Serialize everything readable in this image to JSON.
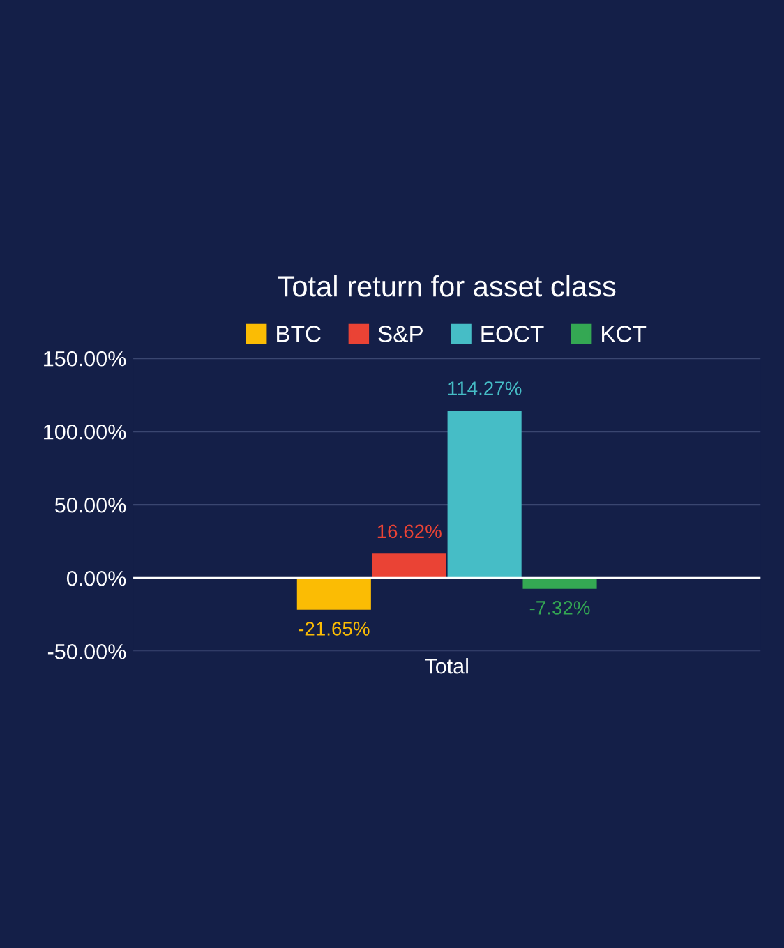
{
  "chart_data": {
    "type": "bar",
    "title": "Total return for asset class",
    "categories": [
      "Total"
    ],
    "series": [
      {
        "name": "BTC",
        "color": "#fbbc04",
        "values": [
          -21.65
        ],
        "value_labels": [
          "-21.65%"
        ]
      },
      {
        "name": "S&P",
        "color": "#ea4335",
        "values": [
          16.62
        ],
        "value_labels": [
          "16.62%"
        ]
      },
      {
        "name": "EOCT",
        "color": "#46bdc6",
        "values": [
          114.27
        ],
        "value_labels": [
          "114.27%"
        ]
      },
      {
        "name": "KCT",
        "color": "#34a853",
        "values": [
          -7.32
        ],
        "value_labels": [
          "-7.32%"
        ]
      }
    ],
    "ylim": [
      -50,
      150
    ],
    "yticks": [
      {
        "value": -50,
        "label": "-50.00%"
      },
      {
        "value": 0,
        "label": "0.00%"
      },
      {
        "value": 50,
        "label": "50.00%"
      },
      {
        "value": 100,
        "label": "100.00%"
      },
      {
        "value": 150,
        "label": "150.00%"
      }
    ],
    "grid": "y",
    "legend": "top"
  }
}
